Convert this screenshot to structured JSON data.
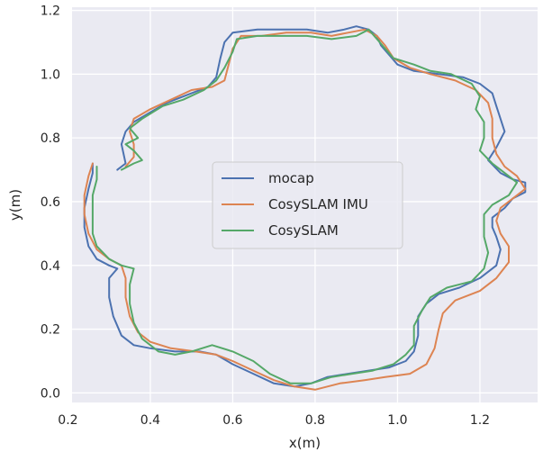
{
  "chart_data": {
    "type": "line",
    "xlabel": "x(m)",
    "ylabel": "y(m)",
    "xlim": [
      0.21,
      1.34
    ],
    "ylim": [
      -0.03,
      1.21
    ],
    "xticks": [
      0.2,
      0.4,
      0.6,
      0.8,
      1.0,
      1.2
    ],
    "xtick_labels": [
      "0.2",
      "0.4",
      "0.6",
      "0.8",
      "1.0",
      "1.2"
    ],
    "yticks": [
      0.0,
      0.2,
      0.4,
      0.6,
      0.8,
      1.0,
      1.2
    ],
    "ytick_labels": [
      "0.0",
      "0.2",
      "0.4",
      "0.6",
      "0.8",
      "1.0",
      "1.2"
    ],
    "grid": true,
    "background": "#eaeaf2",
    "legend_position": "center",
    "series": [
      {
        "name": "mocap",
        "color": "#4c72b0",
        "points": [
          [
            0.32,
            0.7
          ],
          [
            0.34,
            0.72
          ],
          [
            0.33,
            0.78
          ],
          [
            0.34,
            0.82
          ],
          [
            0.36,
            0.85
          ],
          [
            0.4,
            0.88
          ],
          [
            0.44,
            0.91
          ],
          [
            0.5,
            0.94
          ],
          [
            0.54,
            0.96
          ],
          [
            0.56,
            0.99
          ],
          [
            0.57,
            1.05
          ],
          [
            0.58,
            1.1
          ],
          [
            0.6,
            1.13
          ],
          [
            0.66,
            1.14
          ],
          [
            0.72,
            1.14
          ],
          [
            0.78,
            1.14
          ],
          [
            0.83,
            1.13
          ],
          [
            0.87,
            1.14
          ],
          [
            0.9,
            1.15
          ],
          [
            0.93,
            1.14
          ],
          [
            0.95,
            1.12
          ],
          [
            0.96,
            1.09
          ],
          [
            0.98,
            1.06
          ],
          [
            1.0,
            1.03
          ],
          [
            1.04,
            1.01
          ],
          [
            1.1,
            1.0
          ],
          [
            1.16,
            0.99
          ],
          [
            1.2,
            0.97
          ],
          [
            1.23,
            0.94
          ],
          [
            1.24,
            0.9
          ],
          [
            1.25,
            0.86
          ],
          [
            1.26,
            0.82
          ],
          [
            1.24,
            0.77
          ],
          [
            1.22,
            0.73
          ],
          [
            1.25,
            0.69
          ],
          [
            1.28,
            0.67
          ],
          [
            1.31,
            0.66
          ],
          [
            1.31,
            0.63
          ],
          [
            1.28,
            0.61
          ],
          [
            1.26,
            0.58
          ],
          [
            1.23,
            0.55
          ],
          [
            1.23,
            0.52
          ],
          [
            1.24,
            0.49
          ],
          [
            1.25,
            0.45
          ],
          [
            1.24,
            0.4
          ],
          [
            1.2,
            0.36
          ],
          [
            1.15,
            0.33
          ],
          [
            1.1,
            0.31
          ],
          [
            1.07,
            0.28
          ],
          [
            1.05,
            0.24
          ],
          [
            1.05,
            0.18
          ],
          [
            1.04,
            0.13
          ],
          [
            1.02,
            0.1
          ],
          [
            0.98,
            0.08
          ],
          [
            0.93,
            0.07
          ],
          [
            0.88,
            0.06
          ],
          [
            0.83,
            0.05
          ],
          [
            0.79,
            0.03
          ],
          [
            0.75,
            0.02
          ],
          [
            0.7,
            0.03
          ],
          [
            0.65,
            0.06
          ],
          [
            0.6,
            0.09
          ],
          [
            0.56,
            0.12
          ],
          [
            0.52,
            0.13
          ],
          [
            0.46,
            0.13
          ],
          [
            0.4,
            0.14
          ],
          [
            0.36,
            0.15
          ],
          [
            0.33,
            0.18
          ],
          [
            0.31,
            0.24
          ],
          [
            0.3,
            0.3
          ],
          [
            0.3,
            0.36
          ],
          [
            0.32,
            0.39
          ],
          [
            0.3,
            0.4
          ],
          [
            0.27,
            0.42
          ],
          [
            0.25,
            0.46
          ],
          [
            0.24,
            0.52
          ],
          [
            0.24,
            0.58
          ],
          [
            0.25,
            0.64
          ],
          [
            0.26,
            0.69
          ],
          [
            0.26,
            0.72
          ]
        ]
      },
      {
        "name": "CosySLAM IMU",
        "color": "#dd8452",
        "points": [
          [
            0.26,
            0.72
          ],
          [
            0.25,
            0.68
          ],
          [
            0.24,
            0.62
          ],
          [
            0.24,
            0.56
          ],
          [
            0.25,
            0.5
          ],
          [
            0.27,
            0.45
          ],
          [
            0.3,
            0.42
          ],
          [
            0.33,
            0.4
          ],
          [
            0.34,
            0.36
          ],
          [
            0.34,
            0.3
          ],
          [
            0.35,
            0.24
          ],
          [
            0.37,
            0.19
          ],
          [
            0.4,
            0.16
          ],
          [
            0.45,
            0.14
          ],
          [
            0.51,
            0.13
          ],
          [
            0.56,
            0.12
          ],
          [
            0.6,
            0.1
          ],
          [
            0.65,
            0.07
          ],
          [
            0.7,
            0.04
          ],
          [
            0.75,
            0.02
          ],
          [
            0.8,
            0.01
          ],
          [
            0.86,
            0.03
          ],
          [
            0.92,
            0.04
          ],
          [
            0.97,
            0.05
          ],
          [
            1.03,
            0.06
          ],
          [
            1.07,
            0.09
          ],
          [
            1.09,
            0.14
          ],
          [
            1.1,
            0.2
          ],
          [
            1.11,
            0.25
          ],
          [
            1.14,
            0.29
          ],
          [
            1.2,
            0.32
          ],
          [
            1.24,
            0.36
          ],
          [
            1.27,
            0.41
          ],
          [
            1.27,
            0.46
          ],
          [
            1.25,
            0.5
          ],
          [
            1.24,
            0.54
          ],
          [
            1.25,
            0.58
          ],
          [
            1.28,
            0.61
          ],
          [
            1.31,
            0.64
          ],
          [
            1.29,
            0.68
          ],
          [
            1.26,
            0.71
          ],
          [
            1.24,
            0.75
          ],
          [
            1.23,
            0.8
          ],
          [
            1.23,
            0.86
          ],
          [
            1.22,
            0.91
          ],
          [
            1.19,
            0.95
          ],
          [
            1.14,
            0.98
          ],
          [
            1.08,
            1.0
          ],
          [
            1.03,
            1.02
          ],
          [
            0.99,
            1.05
          ],
          [
            0.97,
            1.09
          ],
          [
            0.95,
            1.12
          ],
          [
            0.92,
            1.14
          ],
          [
            0.88,
            1.13
          ],
          [
            0.84,
            1.12
          ],
          [
            0.79,
            1.13
          ],
          [
            0.73,
            1.13
          ],
          [
            0.67,
            1.12
          ],
          [
            0.62,
            1.12
          ],
          [
            0.6,
            1.08
          ],
          [
            0.59,
            1.03
          ],
          [
            0.58,
            0.98
          ],
          [
            0.55,
            0.96
          ],
          [
            0.5,
            0.95
          ],
          [
            0.45,
            0.92
          ],
          [
            0.4,
            0.89
          ],
          [
            0.36,
            0.86
          ],
          [
            0.35,
            0.82
          ],
          [
            0.36,
            0.78
          ],
          [
            0.36,
            0.74
          ],
          [
            0.34,
            0.71
          ]
        ]
      },
      {
        "name": "CosySLAM",
        "color": "#55a868",
        "points": [
          [
            0.33,
            0.7
          ],
          [
            0.36,
            0.72
          ],
          [
            0.38,
            0.73
          ],
          [
            0.36,
            0.76
          ],
          [
            0.34,
            0.78
          ],
          [
            0.37,
            0.8
          ],
          [
            0.35,
            0.83
          ],
          [
            0.38,
            0.86
          ],
          [
            0.43,
            0.9
          ],
          [
            0.48,
            0.92
          ],
          [
            0.53,
            0.95
          ],
          [
            0.56,
            0.98
          ],
          [
            0.58,
            1.02
          ],
          [
            0.6,
            1.07
          ],
          [
            0.61,
            1.11
          ],
          [
            0.66,
            1.12
          ],
          [
            0.72,
            1.12
          ],
          [
            0.78,
            1.12
          ],
          [
            0.84,
            1.11
          ],
          [
            0.9,
            1.12
          ],
          [
            0.93,
            1.14
          ],
          [
            0.95,
            1.11
          ],
          [
            0.97,
            1.08
          ],
          [
            0.99,
            1.05
          ],
          [
            1.04,
            1.03
          ],
          [
            1.08,
            1.01
          ],
          [
            1.13,
            1.0
          ],
          [
            1.18,
            0.97
          ],
          [
            1.2,
            0.93
          ],
          [
            1.19,
            0.89
          ],
          [
            1.21,
            0.85
          ],
          [
            1.21,
            0.8
          ],
          [
            1.2,
            0.76
          ],
          [
            1.23,
            0.72
          ],
          [
            1.26,
            0.69
          ],
          [
            1.29,
            0.66
          ],
          [
            1.27,
            0.62
          ],
          [
            1.23,
            0.59
          ],
          [
            1.21,
            0.56
          ],
          [
            1.21,
            0.52
          ],
          [
            1.21,
            0.49
          ],
          [
            1.22,
            0.44
          ],
          [
            1.21,
            0.39
          ],
          [
            1.18,
            0.35
          ],
          [
            1.12,
            0.33
          ],
          [
            1.08,
            0.3
          ],
          [
            1.06,
            0.26
          ],
          [
            1.04,
            0.21
          ],
          [
            1.04,
            0.15
          ],
          [
            1.02,
            0.12
          ],
          [
            0.99,
            0.09
          ],
          [
            0.94,
            0.07
          ],
          [
            0.89,
            0.06
          ],
          [
            0.84,
            0.05
          ],
          [
            0.79,
            0.03
          ],
          [
            0.74,
            0.03
          ],
          [
            0.69,
            0.06
          ],
          [
            0.65,
            0.1
          ],
          [
            0.6,
            0.13
          ],
          [
            0.55,
            0.15
          ],
          [
            0.5,
            0.13
          ],
          [
            0.46,
            0.12
          ],
          [
            0.42,
            0.13
          ],
          [
            0.38,
            0.17
          ],
          [
            0.36,
            0.22
          ],
          [
            0.35,
            0.28
          ],
          [
            0.35,
            0.34
          ],
          [
            0.36,
            0.39
          ],
          [
            0.33,
            0.4
          ],
          [
            0.3,
            0.42
          ],
          [
            0.27,
            0.46
          ],
          [
            0.26,
            0.5
          ],
          [
            0.26,
            0.56
          ],
          [
            0.26,
            0.62
          ],
          [
            0.27,
            0.67
          ],
          [
            0.27,
            0.71
          ]
        ]
      }
    ]
  }
}
